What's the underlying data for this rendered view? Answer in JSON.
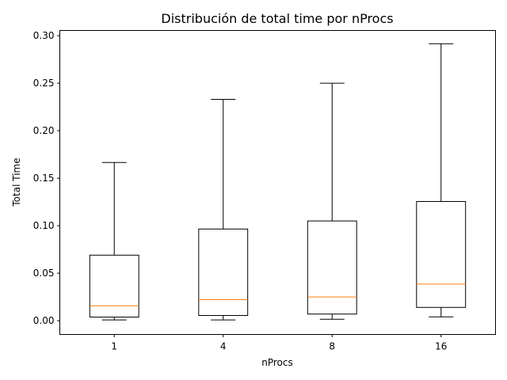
{
  "chart_data": {
    "type": "boxplot",
    "title": "Distribución de total time por nProcs",
    "xlabel": "nProcs",
    "ylabel": "Total Time",
    "ylim": [
      -0.0145,
      0.3055
    ],
    "yticks": [
      0.0,
      0.05,
      0.1,
      0.15,
      0.2,
      0.25,
      0.3
    ],
    "ytick_labels": [
      "0.00",
      "0.05",
      "0.10",
      "0.15",
      "0.20",
      "0.25",
      "0.30"
    ],
    "grid": false,
    "categories": [
      "1",
      "4",
      "8",
      "16"
    ],
    "boxes": [
      {
        "whisker_low": 0.0008,
        "q1": 0.0038,
        "median": 0.0157,
        "q3": 0.069,
        "whisker_high": 0.1665
      },
      {
        "whisker_low": 0.0008,
        "q1": 0.0055,
        "median": 0.0222,
        "q3": 0.0965,
        "whisker_high": 0.233
      },
      {
        "whisker_low": 0.0015,
        "q1": 0.007,
        "median": 0.025,
        "q3": 0.105,
        "whisker_high": 0.25
      },
      {
        "whisker_low": 0.004,
        "q1": 0.014,
        "median": 0.0385,
        "q3": 0.1255,
        "whisker_high": 0.2915
      }
    ],
    "colors": {
      "box": "#000000",
      "median": "#ff7f0e",
      "axes": "#000000"
    }
  }
}
